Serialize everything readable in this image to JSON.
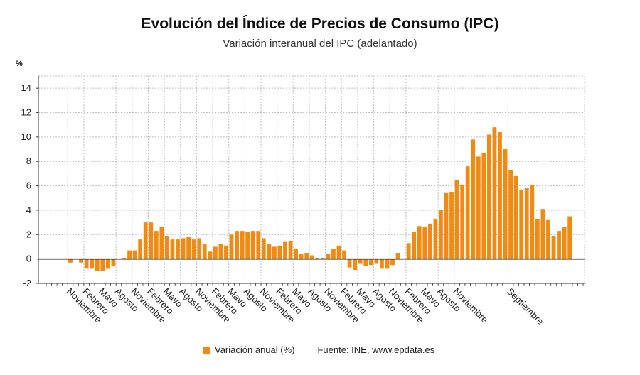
{
  "header": {
    "title": "Evolución del Índice de Precios de Consumo (IPC)",
    "subtitle": "Variación interanual del IPC (adelantado)",
    "unit_label": "%"
  },
  "legend": {
    "series_label": "Variación anual (%)",
    "source": "Fuente: INE, www.epdata.es"
  },
  "colors": {
    "bar": "#f08a12",
    "grid": "#bfbfbf",
    "zero_line": "#222222",
    "axis": "#333333"
  },
  "chart_data": {
    "type": "bar",
    "title": "",
    "xlabel": "",
    "ylabel": "%",
    "ylim": [
      -2,
      15
    ],
    "yticks": [
      -2,
      0,
      2,
      4,
      6,
      8,
      10,
      12,
      14
    ],
    "grid": true,
    "legend_position": "bottom",
    "x_tick_labels": [
      "Noviembre",
      "Febrero",
      "Mayo",
      "Agosto",
      "Noviembre",
      "Febrero",
      "Mayo",
      "Agosto",
      "Noviembre",
      "Febrero",
      "Mayo",
      "Agosto",
      "Noviembre",
      "Febrero",
      "Mayo",
      "Agosto",
      "Noviembre",
      "Febrero",
      "Mayo",
      "Agosto",
      "Noviembre",
      "Febrero",
      "Mayo",
      "Agosto",
      "Noviembre",
      "Septiembre"
    ],
    "x_tick_positions": [
      0,
      3,
      6,
      9,
      12,
      15,
      18,
      21,
      24,
      27,
      30,
      33,
      36,
      39,
      42,
      45,
      48,
      51,
      54,
      57,
      60,
      63,
      66,
      69,
      72,
      82
    ],
    "series": [
      {
        "name": "Variación anual (%)",
        "values": [
          -0.3,
          0.0,
          -0.3,
          -0.8,
          -0.8,
          -1.0,
          -1.0,
          -0.8,
          -0.6,
          0.0,
          0.1,
          0.7,
          0.7,
          1.6,
          3.0,
          3.0,
          2.3,
          2.6,
          1.9,
          1.6,
          1.6,
          1.7,
          1.8,
          1.6,
          1.7,
          1.2,
          0.6,
          1.0,
          1.2,
          1.1,
          2.0,
          2.3,
          2.3,
          2.2,
          2.3,
          2.3,
          1.7,
          1.2,
          1.0,
          1.1,
          1.4,
          1.5,
          0.8,
          0.4,
          0.5,
          0.3,
          0.1,
          0.1,
          0.4,
          0.8,
          1.1,
          0.7,
          -0.7,
          -0.9,
          -0.4,
          -0.6,
          -0.5,
          -0.4,
          -0.8,
          -0.8,
          -0.5,
          0.5,
          0.0,
          1.3,
          2.2,
          2.7,
          2.6,
          2.9,
          3.3,
          4.0,
          5.4,
          5.5,
          6.5,
          6.1,
          7.6,
          9.8,
          8.4,
          8.7,
          10.2,
          10.8,
          10.4,
          9.0,
          7.3,
          6.8,
          5.7,
          5.8,
          6.1,
          3.3,
          4.1,
          3.2,
          1.9,
          2.3,
          2.6,
          3.5
        ]
      }
    ]
  }
}
